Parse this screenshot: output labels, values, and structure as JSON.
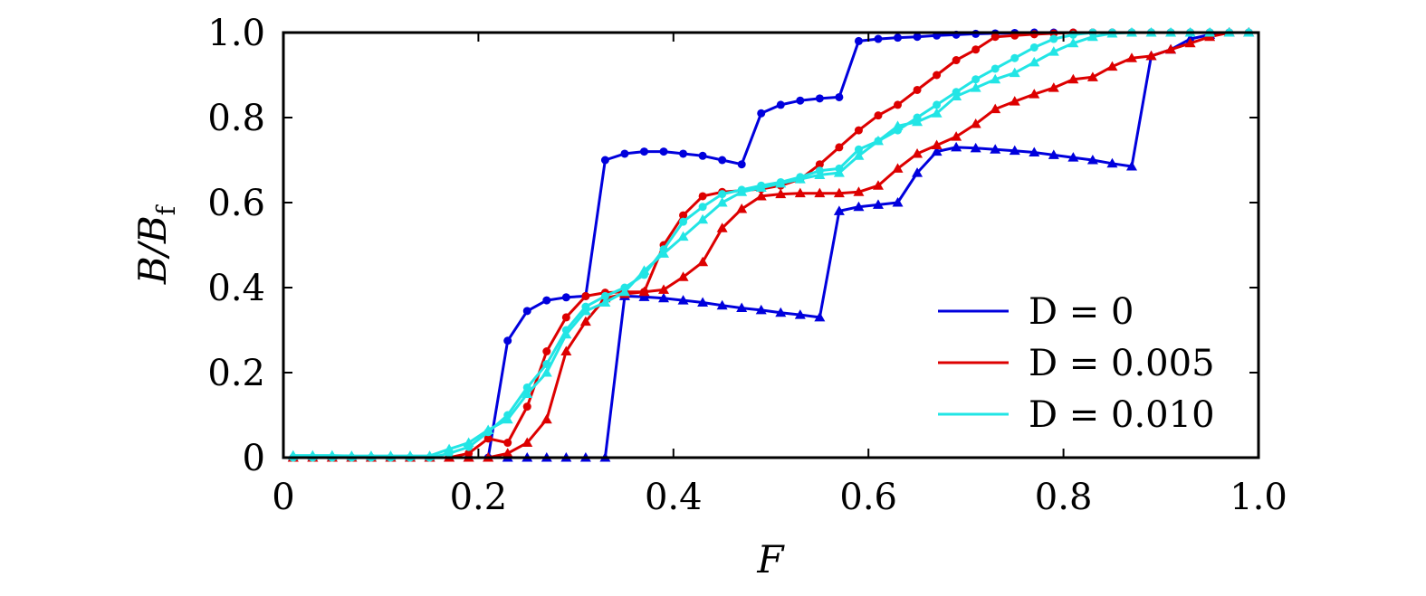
{
  "chart_data": {
    "type": "line",
    "xlabel": "F",
    "ylabel": "B/B",
    "ylabel_sub": "f",
    "xlim": [
      0,
      1.0
    ],
    "ylim": [
      0,
      1.0
    ],
    "x_ticks": [
      "0",
      "0.2",
      "0.4",
      "0.6",
      "0.8",
      "1.0"
    ],
    "y_ticks": [
      "0",
      "0.2",
      "0.4",
      "0.6",
      "0.8",
      "1.0"
    ],
    "grid": false,
    "legend_position": "bottom-right",
    "legend": [
      "D = 0",
      "D = 0.005",
      "D = 0.010"
    ],
    "series": [
      {
        "name": "D = 0",
        "color": "#0000dd",
        "branches": [
          {
            "marker": "circle",
            "x": [
              0.01,
              0.03,
              0.05,
              0.07,
              0.09,
              0.11,
              0.13,
              0.15,
              0.17,
              0.19,
              0.21,
              0.23,
              0.25,
              0.27,
              0.29,
              0.31,
              0.33,
              0.35,
              0.37,
              0.39,
              0.41,
              0.43,
              0.45,
              0.47,
              0.49,
              0.51,
              0.53,
              0.55,
              0.57,
              0.59,
              0.61,
              0.63,
              0.65,
              0.67,
              0.69,
              0.71,
              0.73,
              0.75,
              0.77,
              0.79,
              0.81,
              0.83,
              0.85,
              0.87,
              0.89,
              0.91,
              0.93,
              0.95,
              0.97,
              0.99
            ],
            "y": [
              0,
              0,
              0,
              0,
              0,
              0,
              0,
              0,
              0,
              0,
              0,
              0.275,
              0.345,
              0.37,
              0.377,
              0.38,
              0.7,
              0.715,
              0.72,
              0.72,
              0.715,
              0.71,
              0.7,
              0.69,
              0.81,
              0.83,
              0.84,
              0.845,
              0.848,
              0.98,
              0.985,
              0.988,
              0.99,
              0.993,
              0.995,
              0.997,
              0.998,
              0.999,
              1.0,
              1.0,
              1.0,
              1.0,
              1.0,
              1.0,
              1.0,
              1.0,
              1.0,
              1.0,
              1.0,
              1.0
            ]
          },
          {
            "marker": "triangle",
            "x": [
              0.01,
              0.03,
              0.05,
              0.07,
              0.09,
              0.11,
              0.13,
              0.15,
              0.17,
              0.19,
              0.21,
              0.23,
              0.25,
              0.27,
              0.29,
              0.31,
              0.33,
              0.35,
              0.37,
              0.39,
              0.41,
              0.43,
              0.45,
              0.47,
              0.49,
              0.51,
              0.53,
              0.55,
              0.57,
              0.59,
              0.61,
              0.63,
              0.65,
              0.67,
              0.69,
              0.71,
              0.73,
              0.75,
              0.77,
              0.79,
              0.81,
              0.83,
              0.85,
              0.87,
              0.89,
              0.91,
              0.93,
              0.95,
              0.97,
              0.99
            ],
            "y": [
              0,
              0,
              0,
              0,
              0,
              0,
              0,
              0,
              0,
              0,
              0,
              0,
              0,
              0,
              0,
              0,
              0,
              0.38,
              0.378,
              0.375,
              0.37,
              0.365,
              0.358,
              0.352,
              0.347,
              0.341,
              0.336,
              0.33,
              0.58,
              0.59,
              0.595,
              0.6,
              0.67,
              0.72,
              0.73,
              0.728,
              0.725,
              0.722,
              0.718,
              0.712,
              0.706,
              0.7,
              0.692,
              0.685,
              0.945,
              0.96,
              0.985,
              0.995,
              1.0,
              1.0
            ]
          }
        ]
      },
      {
        "name": "D = 0.005",
        "color": "#dd0000",
        "branches": [
          {
            "marker": "circle",
            "x": [
              0.01,
              0.03,
              0.05,
              0.07,
              0.09,
              0.11,
              0.13,
              0.15,
              0.17,
              0.19,
              0.21,
              0.23,
              0.25,
              0.27,
              0.29,
              0.31,
              0.33,
              0.35,
              0.37,
              0.39,
              0.41,
              0.43,
              0.45,
              0.47,
              0.49,
              0.51,
              0.53,
              0.55,
              0.57,
              0.59,
              0.61,
              0.63,
              0.65,
              0.67,
              0.69,
              0.71,
              0.73,
              0.75,
              0.77,
              0.79,
              0.81,
              0.83,
              0.85,
              0.87,
              0.89,
              0.91,
              0.93,
              0.95,
              0.97,
              0.99
            ],
            "y": [
              0,
              0,
              0,
              0,
              0,
              0,
              0,
              0,
              0,
              0.01,
              0.045,
              0.035,
              0.12,
              0.25,
              0.33,
              0.38,
              0.388,
              0.39,
              0.39,
              0.5,
              0.57,
              0.615,
              0.625,
              0.628,
              0.632,
              0.64,
              0.655,
              0.69,
              0.73,
              0.77,
              0.805,
              0.83,
              0.865,
              0.9,
              0.935,
              0.96,
              0.99,
              0.993,
              0.996,
              0.998,
              1.0,
              1.0,
              1.0,
              1.0,
              1.0,
              1.0,
              1.0,
              1.0,
              1.0,
              1.0
            ]
          },
          {
            "marker": "triangle",
            "x": [
              0.01,
              0.03,
              0.05,
              0.07,
              0.09,
              0.11,
              0.13,
              0.15,
              0.17,
              0.19,
              0.21,
              0.23,
              0.25,
              0.27,
              0.29,
              0.31,
              0.33,
              0.35,
              0.37,
              0.39,
              0.41,
              0.43,
              0.45,
              0.47,
              0.49,
              0.51,
              0.53,
              0.55,
              0.57,
              0.59,
              0.61,
              0.63,
              0.65,
              0.67,
              0.69,
              0.71,
              0.73,
              0.75,
              0.77,
              0.79,
              0.81,
              0.83,
              0.85,
              0.87,
              0.89,
              0.91,
              0.93,
              0.95,
              0.97,
              0.99
            ],
            "y": [
              0,
              0,
              0,
              0,
              0,
              0,
              0,
              0,
              0,
              0,
              0,
              0.01,
              0.035,
              0.09,
              0.25,
              0.32,
              0.375,
              0.385,
              0.39,
              0.395,
              0.425,
              0.46,
              0.54,
              0.585,
              0.615,
              0.62,
              0.622,
              0.622,
              0.622,
              0.625,
              0.64,
              0.68,
              0.715,
              0.735,
              0.755,
              0.785,
              0.82,
              0.838,
              0.855,
              0.87,
              0.89,
              0.895,
              0.92,
              0.94,
              0.945,
              0.96,
              0.975,
              0.99,
              1.0,
              1.0
            ]
          }
        ]
      },
      {
        "name": "D = 0.010",
        "color": "#22e5e5",
        "branches": [
          {
            "marker": "circle",
            "x": [
              0.01,
              0.03,
              0.05,
              0.07,
              0.09,
              0.11,
              0.13,
              0.15,
              0.17,
              0.19,
              0.21,
              0.23,
              0.25,
              0.27,
              0.29,
              0.31,
              0.33,
              0.35,
              0.37,
              0.39,
              0.41,
              0.43,
              0.45,
              0.47,
              0.49,
              0.51,
              0.53,
              0.55,
              0.57,
              0.59,
              0.61,
              0.63,
              0.65,
              0.67,
              0.69,
              0.71,
              0.73,
              0.75,
              0.77,
              0.79,
              0.81,
              0.83,
              0.85,
              0.87,
              0.89,
              0.91,
              0.93,
              0.95,
              0.97,
              0.99
            ],
            "y": [
              0,
              0,
              0,
              0,
              0,
              0,
              0,
              0,
              0.01,
              0.025,
              0.06,
              0.1,
              0.165,
              0.22,
              0.3,
              0.355,
              0.38,
              0.4,
              0.43,
              0.49,
              0.555,
              0.59,
              0.62,
              0.63,
              0.64,
              0.648,
              0.66,
              0.675,
              0.68,
              0.725,
              0.745,
              0.77,
              0.8,
              0.83,
              0.86,
              0.89,
              0.915,
              0.94,
              0.965,
              0.985,
              0.995,
              1.0,
              1.0,
              1.0,
              1.0,
              1.0,
              1.0,
              1.0,
              1.0,
              1.0
            ]
          },
          {
            "marker": "triangle",
            "x": [
              0.01,
              0.03,
              0.05,
              0.07,
              0.09,
              0.11,
              0.13,
              0.15,
              0.17,
              0.19,
              0.21,
              0.23,
              0.25,
              0.27,
              0.29,
              0.31,
              0.33,
              0.35,
              0.37,
              0.39,
              0.41,
              0.43,
              0.45,
              0.47,
              0.49,
              0.51,
              0.53,
              0.55,
              0.57,
              0.59,
              0.61,
              0.63,
              0.65,
              0.67,
              0.69,
              0.71,
              0.73,
              0.75,
              0.77,
              0.79,
              0.81,
              0.83,
              0.85,
              0.87,
              0.89,
              0.91,
              0.93,
              0.95,
              0.97,
              0.99
            ],
            "y": [
              0.005,
              0.005,
              0.005,
              0.004,
              0.004,
              0.004,
              0.004,
              0.004,
              0.02,
              0.035,
              0.065,
              0.09,
              0.15,
              0.2,
              0.29,
              0.345,
              0.365,
              0.39,
              0.44,
              0.48,
              0.52,
              0.56,
              0.6,
              0.625,
              0.635,
              0.645,
              0.655,
              0.665,
              0.67,
              0.71,
              0.745,
              0.78,
              0.79,
              0.81,
              0.85,
              0.87,
              0.89,
              0.905,
              0.93,
              0.955,
              0.975,
              0.99,
              0.998,
              1.0,
              1.0,
              1.0,
              1.0,
              1.0,
              1.0,
              1.0
            ]
          }
        ]
      }
    ]
  }
}
